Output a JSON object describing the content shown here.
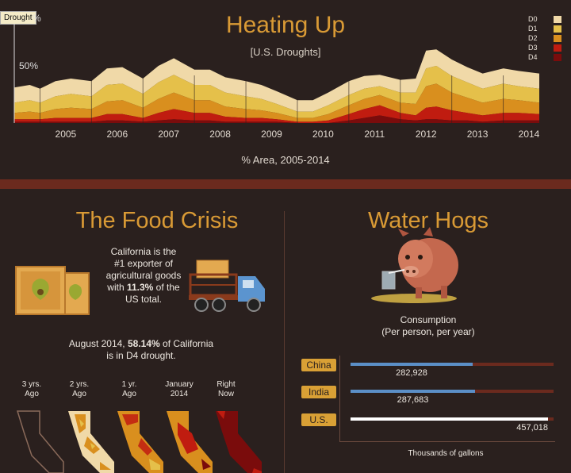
{
  "header": {
    "title": "Heating Up",
    "subtitle": "[U.S. Droughts]",
    "tooltip": "Drought"
  },
  "colors": {
    "D0": "#f0d9a8",
    "D1": "#e5c04a",
    "D2": "#d98f1e",
    "D3": "#c01c10",
    "D4": "#7a0c0c",
    "accent": "#d99a35"
  },
  "chart_data": {
    "type": "area",
    "title": "Heating Up",
    "subtitle": "[U.S. Droughts]",
    "xlabel": "% Area, 2005-2014",
    "ylabel": "",
    "y_ticks": [
      "%",
      "50%"
    ],
    "ylim": [
      0,
      100
    ],
    "legend_position": "top-right",
    "categories": [
      "2005",
      "2006",
      "2007",
      "2008",
      "2009",
      "2010",
      "2011",
      "2012",
      "2013",
      "2014"
    ],
    "x": [
      2004.5,
      2004.8,
      2005.0,
      2005.3,
      2005.6,
      2006.0,
      2006.3,
      2006.6,
      2007.0,
      2007.3,
      2007.6,
      2008.0,
      2008.3,
      2008.6,
      2009.0,
      2009.3,
      2009.6,
      2010.0,
      2010.3,
      2010.6,
      2011.0,
      2011.3,
      2011.6,
      2012.0,
      2012.3,
      2012.5,
      2012.7,
      2013.0,
      2013.3,
      2013.6,
      2014.0,
      2014.3,
      2014.7
    ],
    "series": [
      {
        "name": "D4",
        "values": [
          1,
          1,
          1,
          1,
          1,
          1,
          2,
          2,
          1,
          2,
          3,
          2,
          2,
          1,
          1,
          1,
          1,
          0,
          0,
          0,
          2,
          4,
          6,
          3,
          2,
          3,
          3,
          2,
          2,
          1,
          2,
          2,
          2
        ]
      },
      {
        "name": "D3",
        "values": [
          2,
          2,
          2,
          3,
          3,
          3,
          5,
          5,
          3,
          6,
          8,
          6,
          6,
          4,
          3,
          3,
          2,
          1,
          1,
          2,
          5,
          7,
          8,
          5,
          4,
          9,
          10,
          8,
          6,
          5,
          6,
          6,
          5
        ]
      },
      {
        "name": "D2",
        "values": [
          5,
          6,
          5,
          7,
          8,
          7,
          10,
          11,
          8,
          11,
          13,
          10,
          10,
          8,
          7,
          6,
          5,
          3,
          3,
          5,
          7,
          8,
          8,
          8,
          9,
          17,
          18,
          14,
          12,
          10,
          11,
          10,
          9
        ]
      },
      {
        "name": "D1",
        "values": [
          8,
          9,
          8,
          10,
          11,
          10,
          13,
          13,
          11,
          13,
          14,
          12,
          12,
          11,
          10,
          9,
          7,
          5,
          5,
          7,
          8,
          8,
          7,
          8,
          9,
          14,
          14,
          13,
          12,
          11,
          12,
          11,
          11
        ]
      },
      {
        "name": "D0",
        "values": [
          12,
          12,
          11,
          12,
          12,
          12,
          13,
          13,
          12,
          13,
          13,
          12,
          12,
          12,
          12,
          11,
          10,
          9,
          9,
          10,
          11,
          10,
          9,
          10,
          11,
          14,
          13,
          13,
          12,
          12,
          12,
          12,
          12
        ]
      }
    ]
  },
  "food": {
    "title": "The Food Crisis",
    "exporter_lines": [
      "California is the",
      "#1 exporter of",
      "agricultural goods"
    ],
    "exporter_prefix": "with ",
    "exporter_pct": "11.3%",
    "exporter_suffix": " of the",
    "exporter_last": "US total.",
    "drought_prefix": "August 2014, ",
    "drought_pct": "58.14%",
    "drought_suffix": " of California",
    "drought_last": "is in D4 drought.",
    "maps": [
      {
        "line1": "3 yrs.",
        "line2": "Ago"
      },
      {
        "line1": "2 yrs.",
        "line2": "Ago"
      },
      {
        "line1": "1 yr.",
        "line2": "Ago"
      },
      {
        "line1": "January",
        "line2": "2014"
      },
      {
        "line1": "Right",
        "line2": "Now"
      }
    ]
  },
  "hogs": {
    "title": "Water Hogs",
    "consumption": "Consumption",
    "per": "(Per person, per year)",
    "units": "Thousands of gallons",
    "bars": [
      {
        "country": "China",
        "value": 282928,
        "label": "282,928",
        "color": "#5b8fc7"
      },
      {
        "country": "India",
        "value": 287683,
        "label": "287,683",
        "color": "#5b8fc7"
      },
      {
        "country": "U.S.",
        "value": 457018,
        "label": "457,018",
        "color": "#ffffff"
      }
    ],
    "max": 470000
  }
}
